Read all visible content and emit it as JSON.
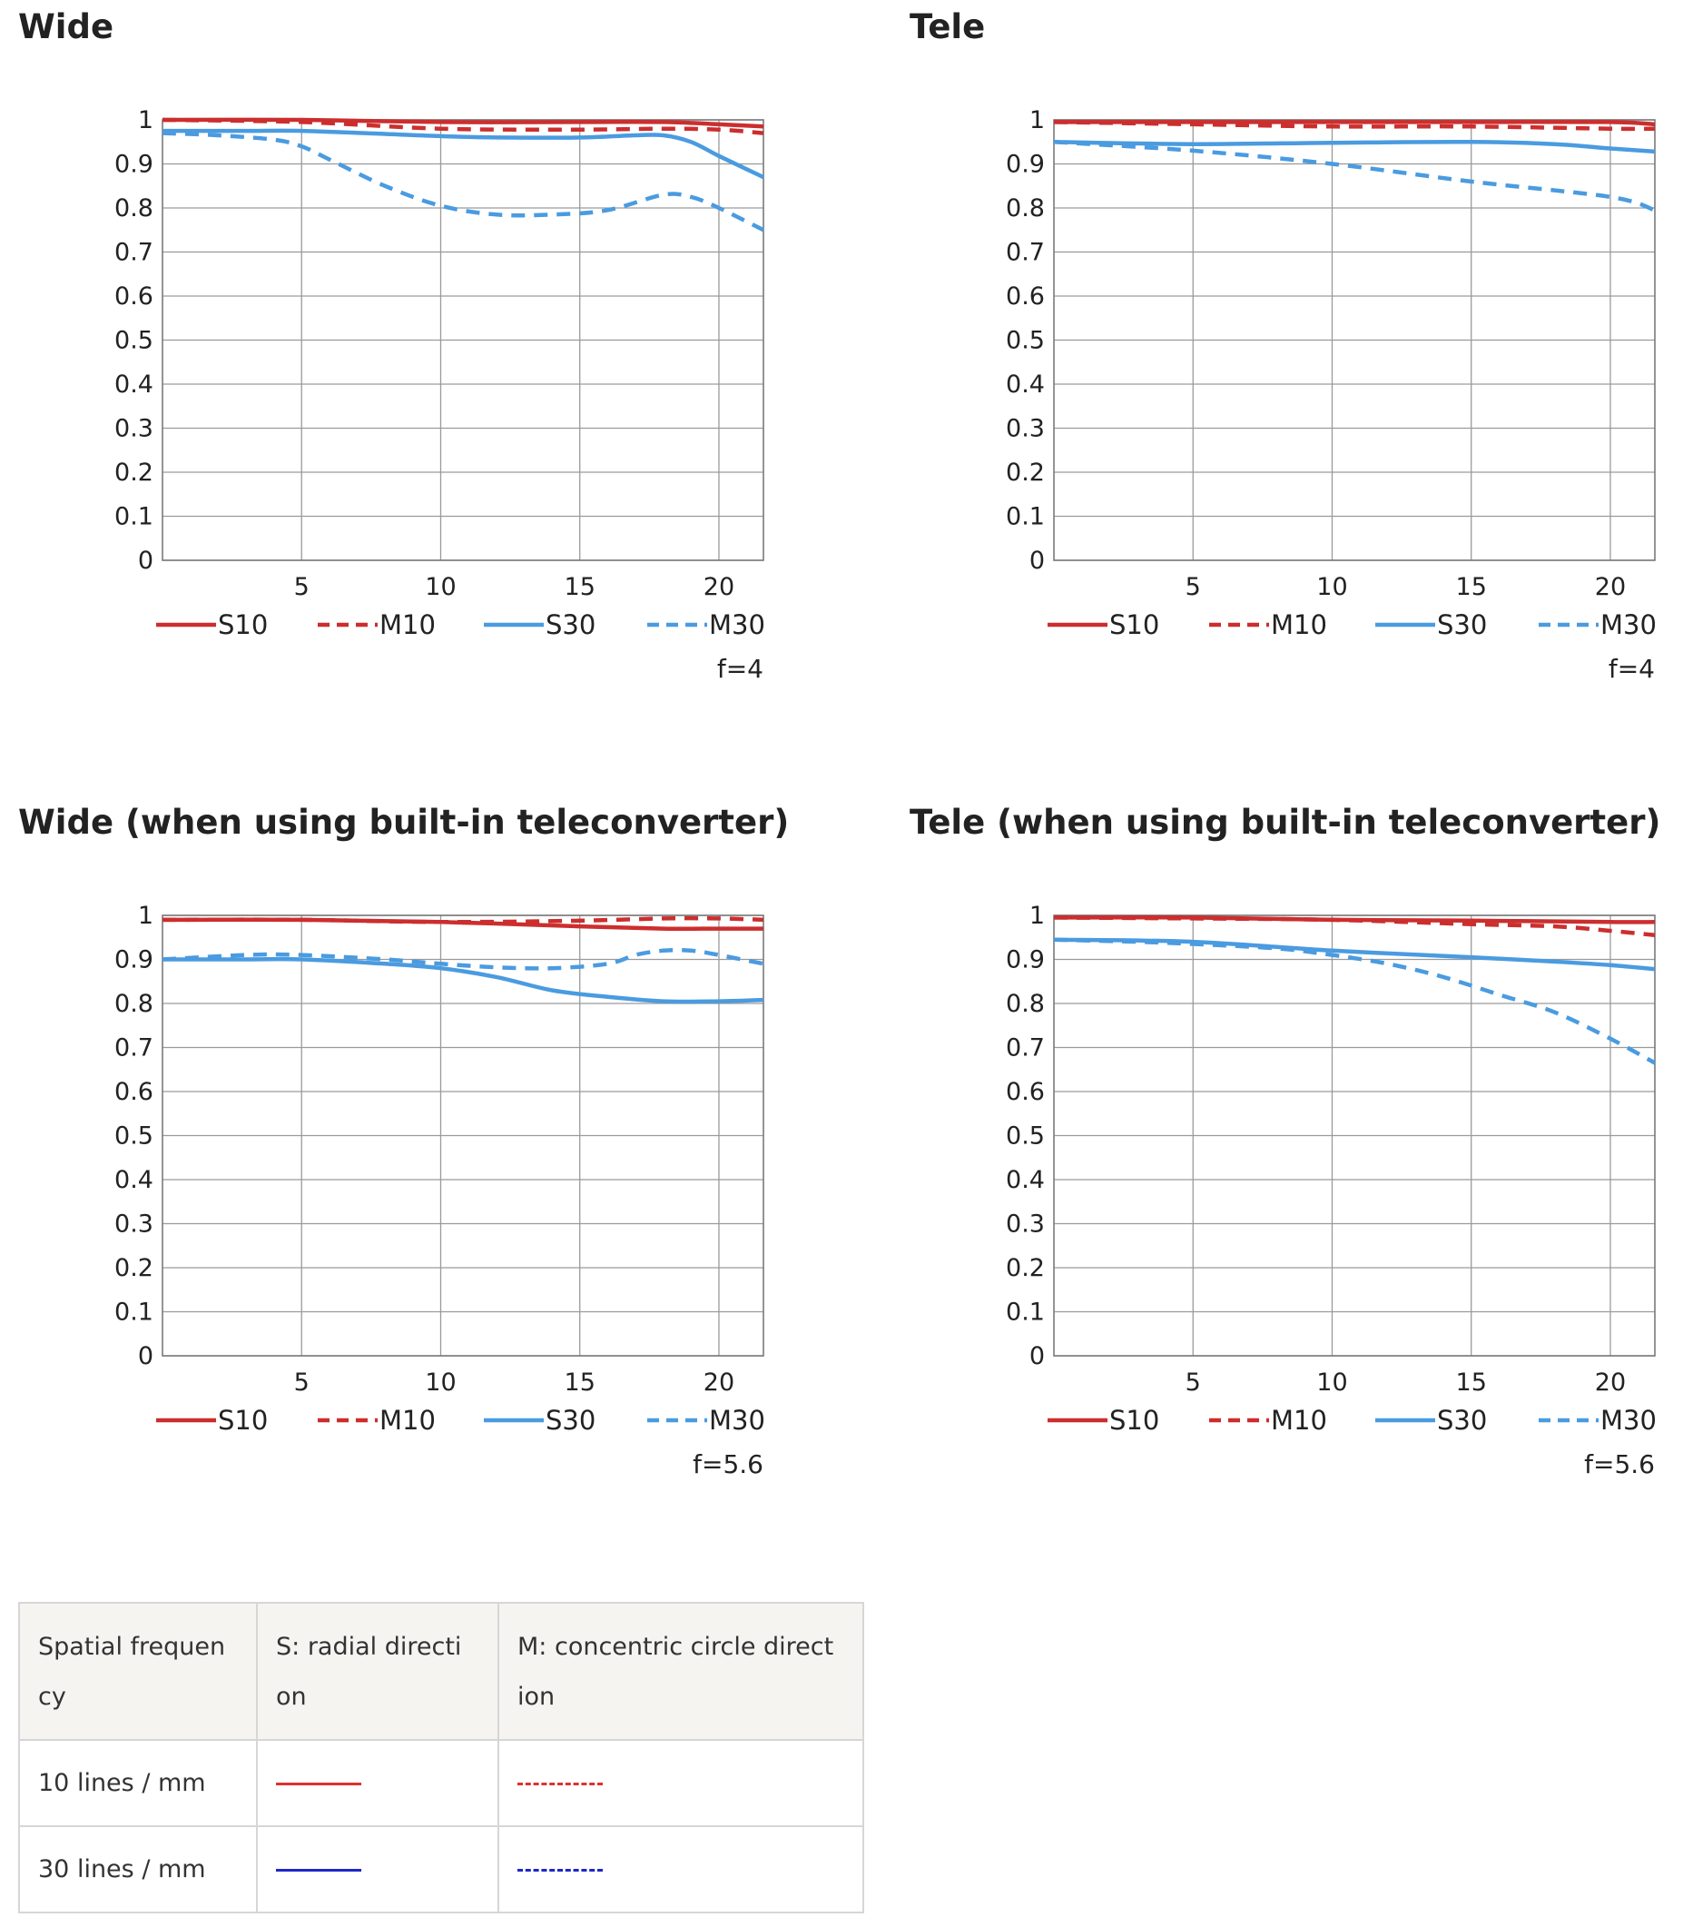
{
  "chart_data": [
    {
      "type": "line",
      "title": "Wide",
      "fnumber": "f=4",
      "ylim": [
        0,
        1
      ],
      "xlim": [
        0,
        21.6
      ],
      "yticks": [
        "0",
        "0.1",
        "0.2",
        "0.3",
        "0.4",
        "0.5",
        "0.6",
        "0.7",
        "0.8",
        "0.9",
        "1"
      ],
      "xticks": [
        "5",
        "10",
        "15",
        "20"
      ],
      "series": [
        {
          "name": "S10",
          "color": "#cc2e2e",
          "dashed": false,
          "x": [
            0,
            5,
            10,
            15,
            18,
            20,
            21.6
          ],
          "y": [
            1.0,
            1.0,
            0.995,
            0.995,
            0.995,
            0.99,
            0.985
          ]
        },
        {
          "name": "M10",
          "color": "#cc2e2e",
          "dashed": true,
          "x": [
            0,
            5,
            10,
            15,
            18,
            20,
            21.6
          ],
          "y": [
            1.0,
            0.995,
            0.98,
            0.978,
            0.98,
            0.978,
            0.97
          ]
        },
        {
          "name": "S30",
          "color": "#4a9be0",
          "dashed": false,
          "x": [
            0,
            3,
            5,
            8,
            10,
            12,
            15,
            17,
            18,
            19,
            20,
            21.6
          ],
          "y": [
            0.975,
            0.975,
            0.975,
            0.968,
            0.963,
            0.96,
            0.96,
            0.965,
            0.965,
            0.95,
            0.918,
            0.87
          ]
        },
        {
          "name": "M30",
          "color": "#4a9be0",
          "dashed": true,
          "x": [
            0,
            2,
            4,
            5,
            6,
            8,
            10,
            12,
            14,
            16,
            18,
            19,
            20,
            21.6
          ],
          "y": [
            0.97,
            0.965,
            0.955,
            0.94,
            0.91,
            0.85,
            0.805,
            0.785,
            0.785,
            0.795,
            0.83,
            0.825,
            0.8,
            0.75
          ]
        }
      ],
      "legend": [
        "S10",
        "M10",
        "S30",
        "M30"
      ]
    },
    {
      "type": "line",
      "title": "Tele",
      "fnumber": "f=4",
      "ylim": [
        0,
        1
      ],
      "xlim": [
        0,
        21.6
      ],
      "yticks": [
        "0",
        "0.1",
        "0.2",
        "0.3",
        "0.4",
        "0.5",
        "0.6",
        "0.7",
        "0.8",
        "0.9",
        "1"
      ],
      "xticks": [
        "5",
        "10",
        "15",
        "20"
      ],
      "series": [
        {
          "name": "S10",
          "color": "#cc2e2e",
          "dashed": false,
          "x": [
            0,
            5,
            10,
            15,
            20,
            21.6
          ],
          "y": [
            0.995,
            0.995,
            0.995,
            0.995,
            0.995,
            0.99
          ]
        },
        {
          "name": "M10",
          "color": "#cc2e2e",
          "dashed": true,
          "x": [
            0,
            5,
            10,
            15,
            20,
            21.6
          ],
          "y": [
            0.995,
            0.99,
            0.985,
            0.985,
            0.98,
            0.98
          ]
        },
        {
          "name": "S30",
          "color": "#4a9be0",
          "dashed": false,
          "x": [
            0,
            5,
            10,
            15,
            18,
            20,
            21.6
          ],
          "y": [
            0.95,
            0.945,
            0.948,
            0.95,
            0.945,
            0.935,
            0.928
          ]
        },
        {
          "name": "M30",
          "color": "#4a9be0",
          "dashed": true,
          "x": [
            0,
            5,
            10,
            15,
            20,
            21.6
          ],
          "y": [
            0.95,
            0.93,
            0.9,
            0.86,
            0.825,
            0.795
          ]
        }
      ],
      "legend": [
        "S10",
        "M10",
        "S30",
        "M30"
      ]
    },
    {
      "type": "line",
      "title": "Wide (when using built-in teleconverter)",
      "fnumber": "f=5.6",
      "ylim": [
        0,
        1
      ],
      "xlim": [
        0,
        21.6
      ],
      "yticks": [
        "0",
        "0.1",
        "0.2",
        "0.3",
        "0.4",
        "0.5",
        "0.6",
        "0.7",
        "0.8",
        "0.9",
        "1"
      ],
      "xticks": [
        "5",
        "10",
        "15",
        "20"
      ],
      "series": [
        {
          "name": "S10",
          "color": "#cc2e2e",
          "dashed": false,
          "x": [
            0,
            5,
            10,
            15,
            18,
            20,
            21.6
          ],
          "y": [
            0.99,
            0.99,
            0.985,
            0.975,
            0.97,
            0.97,
            0.97
          ]
        },
        {
          "name": "M10",
          "color": "#cc2e2e",
          "dashed": true,
          "x": [
            0,
            5,
            10,
            15,
            18,
            20,
            21.6
          ],
          "y": [
            0.99,
            0.99,
            0.985,
            0.988,
            0.993,
            0.993,
            0.99
          ]
        },
        {
          "name": "S30",
          "color": "#4a9be0",
          "dashed": false,
          "x": [
            0,
            3,
            5,
            8,
            10,
            12,
            14,
            16,
            18,
            20,
            21.6
          ],
          "y": [
            0.9,
            0.9,
            0.9,
            0.89,
            0.88,
            0.86,
            0.83,
            0.815,
            0.805,
            0.805,
            0.808
          ]
        },
        {
          "name": "M30",
          "color": "#4a9be0",
          "dashed": true,
          "x": [
            0,
            3,
            5,
            8,
            10,
            12,
            14,
            16,
            17,
            18,
            19,
            20,
            21.6
          ],
          "y": [
            0.9,
            0.91,
            0.91,
            0.9,
            0.89,
            0.882,
            0.88,
            0.89,
            0.91,
            0.92,
            0.92,
            0.91,
            0.89
          ]
        }
      ],
      "legend": [
        "S10",
        "M10",
        "S30",
        "M30"
      ]
    },
    {
      "type": "line",
      "title": "Tele (when using built-in teleconverter)",
      "fnumber": "f=5.6",
      "ylim": [
        0,
        1
      ],
      "xlim": [
        0,
        21.6
      ],
      "yticks": [
        "0",
        "0.1",
        "0.2",
        "0.3",
        "0.4",
        "0.5",
        "0.6",
        "0.7",
        "0.8",
        "0.9",
        "1"
      ],
      "xticks": [
        "5",
        "10",
        "15",
        "20"
      ],
      "series": [
        {
          "name": "S10",
          "color": "#cc2e2e",
          "dashed": false,
          "x": [
            0,
            5,
            10,
            15,
            20,
            21.6
          ],
          "y": [
            0.995,
            0.995,
            0.99,
            0.988,
            0.985,
            0.985
          ]
        },
        {
          "name": "M10",
          "color": "#cc2e2e",
          "dashed": true,
          "x": [
            0,
            5,
            10,
            15,
            18,
            20,
            21.6
          ],
          "y": [
            0.995,
            0.993,
            0.99,
            0.98,
            0.975,
            0.965,
            0.955
          ]
        },
        {
          "name": "S30",
          "color": "#4a9be0",
          "dashed": false,
          "x": [
            0,
            5,
            10,
            15,
            18,
            20,
            21.6
          ],
          "y": [
            0.945,
            0.94,
            0.92,
            0.905,
            0.895,
            0.887,
            0.878
          ]
        },
        {
          "name": "M30",
          "color": "#4a9be0",
          "dashed": true,
          "x": [
            0,
            3,
            5,
            8,
            10,
            12,
            14,
            16,
            18,
            20,
            21.6
          ],
          "y": [
            0.945,
            0.94,
            0.935,
            0.925,
            0.91,
            0.89,
            0.86,
            0.82,
            0.78,
            0.72,
            0.665
          ]
        }
      ],
      "legend": [
        "S10",
        "M10",
        "S30",
        "M30"
      ]
    }
  ],
  "key_table": {
    "headers": [
      "Spatial frequen\ncy",
      "S: radial directi\non",
      "M: concentric circle direct\nion"
    ],
    "rows": [
      {
        "label": "10 lines / mm",
        "s_color": "#e03030",
        "m_color": "#e03030"
      },
      {
        "label": "30 lines / mm",
        "s_color": "#1d27c9",
        "m_color": "#1d27c9"
      }
    ]
  }
}
